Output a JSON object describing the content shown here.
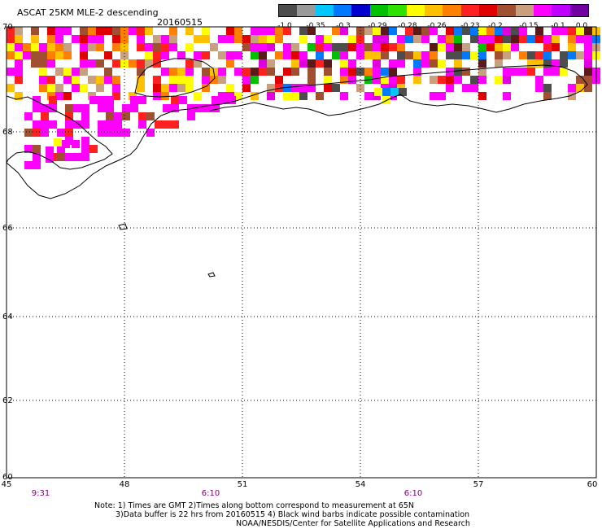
{
  "title": "ASCAT 25KM MLE-2 descending",
  "date": "20160515",
  "colorbar": {
    "colors": [
      "#4d4d4d",
      "#9a9a9a",
      "#00c8ff",
      "#0078ff",
      "#0000cc",
      "#00c000",
      "#30e000",
      "#ffff00",
      "#ffc000",
      "#ff8000",
      "#ff2020",
      "#e00000",
      "#a05030",
      "#c8a080",
      "#ff00ff",
      "#c000ff",
      "#7000a0"
    ],
    "labels": [
      "-1.0",
      "-0.35",
      "-0.3",
      "-0.29",
      "-0.28",
      "-0.26",
      "-0.23",
      "-0.2",
      "-0.15",
      "-0.1",
      "0.0"
    ]
  },
  "lat_labels": [
    "70",
    "68",
    "66",
    "64",
    "62",
    "60"
  ],
  "lon_labels": [
    "45",
    "48",
    "51",
    "54",
    "57",
    "60"
  ],
  "time_labels": [
    "9:31",
    "6:10",
    "6:10"
  ],
  "note": [
    "Note: 1) Times are GMT 2)Times along bottom correspond to measurement at 65N",
    "3)Data buffer is 22 hrs from 20160515 4) Black wind barbs indicate possible contamination",
    "NOAA/NESDIS/Center for Satellite Applications and Research"
  ]
}
